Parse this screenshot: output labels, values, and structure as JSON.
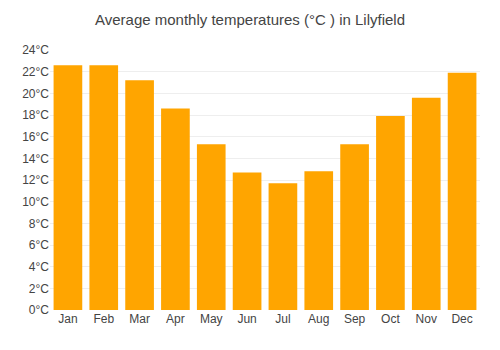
{
  "chart_data": {
    "type": "bar",
    "title": "Average monthly temperatures (°C ) in Lilyfield",
    "categories": [
      "Jan",
      "Feb",
      "Mar",
      "Apr",
      "May",
      "Jun",
      "Jul",
      "Aug",
      "Sep",
      "Oct",
      "Nov",
      "Dec"
    ],
    "values": [
      22.6,
      22.6,
      21.2,
      18.6,
      15.3,
      12.7,
      11.7,
      12.8,
      15.3,
      17.9,
      19.6,
      21.9
    ],
    "color": "#FFA500",
    "ylim": [
      0,
      24
    ],
    "yticks": [
      {
        "value": 0,
        "label": "0°C"
      },
      {
        "value": 2,
        "label": "2°C"
      },
      {
        "value": 4,
        "label": "4°C"
      },
      {
        "value": 6,
        "label": "6°C"
      },
      {
        "value": 8,
        "label": "8°C"
      },
      {
        "value": 10,
        "label": "10°C"
      },
      {
        "value": 12,
        "label": "12°C"
      },
      {
        "value": 14,
        "label": "14°C"
      },
      {
        "value": 16,
        "label": "16°C"
      },
      {
        "value": 18,
        "label": "18°C"
      },
      {
        "value": 20,
        "label": "20°C"
      },
      {
        "value": 22,
        "label": "22°C"
      },
      {
        "value": 24,
        "label": "24°C"
      }
    ],
    "grid": true
  }
}
